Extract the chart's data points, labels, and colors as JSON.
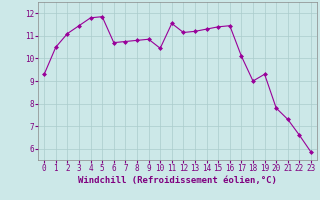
{
  "x": [
    0,
    1,
    2,
    3,
    4,
    5,
    6,
    7,
    8,
    9,
    10,
    11,
    12,
    13,
    14,
    15,
    16,
    17,
    18,
    19,
    20,
    21,
    22,
    23
  ],
  "y": [
    9.3,
    10.5,
    11.1,
    11.45,
    11.8,
    11.85,
    10.7,
    10.75,
    10.8,
    10.85,
    10.45,
    11.55,
    11.15,
    11.2,
    11.3,
    11.4,
    11.45,
    10.1,
    9.0,
    9.3,
    7.8,
    7.3,
    6.6,
    5.85
  ],
  "line_color": "#990099",
  "marker": "D",
  "markersize": 2.0,
  "linewidth": 0.8,
  "bg_color": "#cce8e8",
  "grid_color": "#aacccc",
  "xlabel": "Windchill (Refroidissement éolien,°C)",
  "xlabel_color": "#800080",
  "xlabel_fontsize": 6.5,
  "tick_fontsize": 5.5,
  "tick_color": "#800080",
  "xlim": [
    -0.5,
    23.5
  ],
  "ylim": [
    5.5,
    12.5
  ],
  "yticks": [
    6,
    7,
    8,
    9,
    10,
    11,
    12
  ],
  "xticks": [
    0,
    1,
    2,
    3,
    4,
    5,
    6,
    7,
    8,
    9,
    10,
    11,
    12,
    13,
    14,
    15,
    16,
    17,
    18,
    19,
    20,
    21,
    22,
    23
  ]
}
